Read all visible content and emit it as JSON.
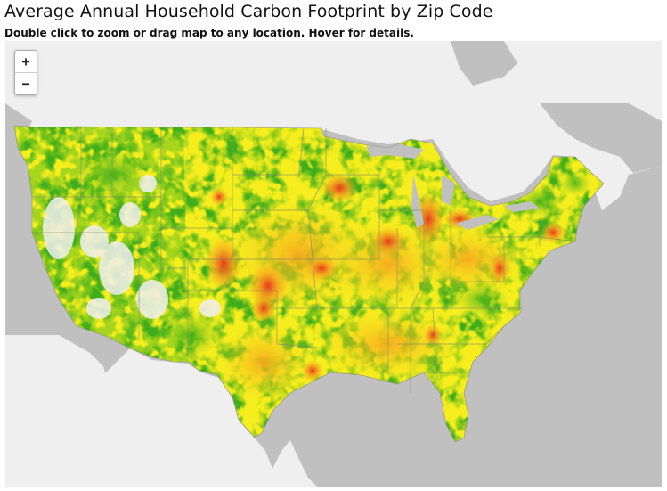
{
  "title": "Average Annual Household Carbon Footprint by Zip Code",
  "subtitle": "Double click to zoom or drag map to any location. Hover for details.",
  "zoom": {
    "in_label": "+",
    "out_label": "−"
  },
  "colors": {
    "ocean": "#c0c0c0",
    "land": "#efefef",
    "low": "#3fae1a",
    "low_mid": "#9ad11e",
    "mid": "#f6ee1e",
    "mid_high": "#f4a21e",
    "high": "#e8311d",
    "state_border": "#7a8a6a"
  }
}
